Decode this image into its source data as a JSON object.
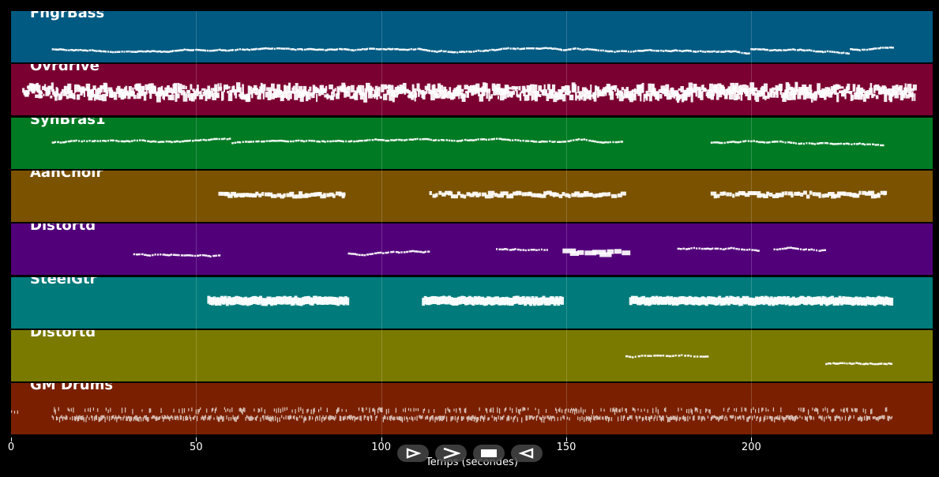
{
  "tracks": [
    {
      "name": "FngrBass",
      "color": "#005a82",
      "pattern": "bass"
    },
    {
      "name": "Ovrdrive",
      "color": "#7a0031",
      "pattern": "dense"
    },
    {
      "name": "SynBras1",
      "color": "#007a23",
      "pattern": "brass"
    },
    {
      "name": "AahChoir",
      "color": "#7a5200",
      "pattern": "choir"
    },
    {
      "name": "Distortd",
      "color": "#52007a",
      "pattern": "dist1"
    },
    {
      "name": "SteelGtr",
      "color": "#007a7a",
      "pattern": "steel"
    },
    {
      "name": "Distortd",
      "color": "#7a7a00",
      "pattern": "dist2"
    },
    {
      "name": "GM Drums",
      "color": "#7a2000",
      "pattern": "drums"
    }
  ],
  "axis": {
    "label": "Temps (secondes)",
    "ticks": [
      0,
      50,
      100,
      150,
      200
    ],
    "range": [
      0,
      249
    ]
  },
  "controls": [
    {
      "name": "play-button",
      "icon": "play-icon"
    },
    {
      "name": "forward-button",
      "icon": "forward-icon"
    },
    {
      "name": "stop-button",
      "icon": "stop-icon"
    },
    {
      "name": "rewind-button",
      "icon": "rewind-icon"
    }
  ]
}
